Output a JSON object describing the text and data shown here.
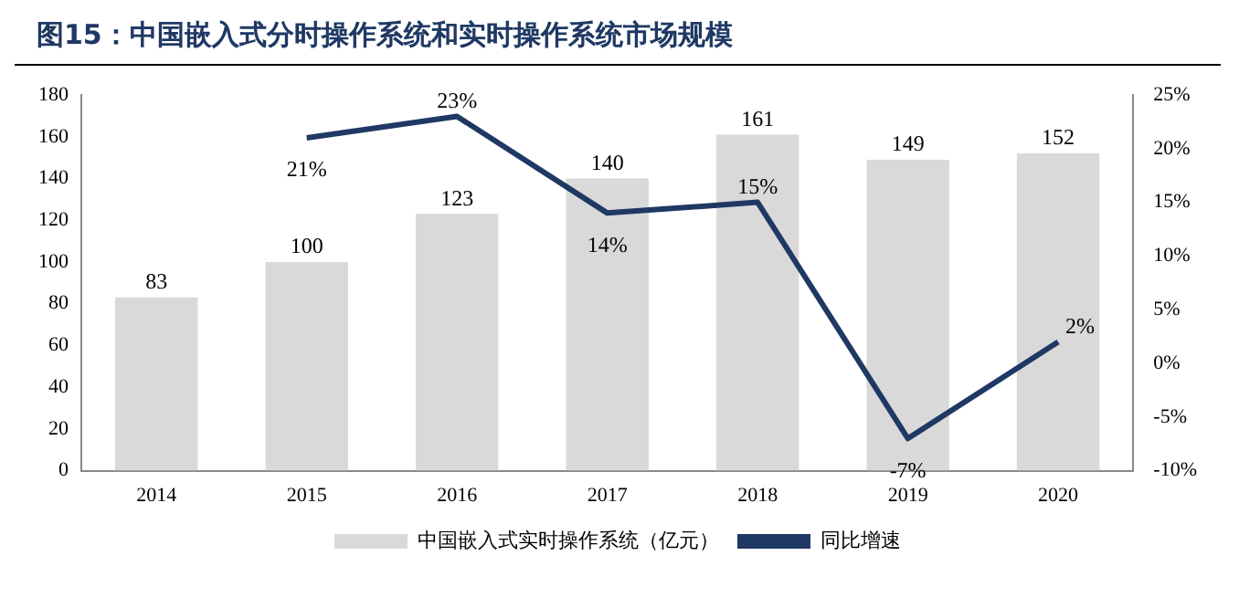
{
  "chart_data": {
    "type": "bar",
    "title": "图15：中国嵌入式分时操作系统和实时操作系统市场规模",
    "categories": [
      "2014",
      "2015",
      "2016",
      "2017",
      "2018",
      "2019",
      "2020"
    ],
    "series": [
      {
        "name": "中国嵌入式实时操作系统（亿元）",
        "color": "#d9d9d9",
        "values": [
          83,
          100,
          123,
          140,
          161,
          149,
          152
        ],
        "value_labels": [
          "83",
          "100",
          "123",
          "140",
          "161",
          "149",
          "152"
        ]
      },
      {
        "name": "同比增速",
        "type": "line",
        "axis": "y2",
        "color": "#1f3864",
        "values": [
          null,
          21,
          23,
          14,
          15,
          -7,
          2
        ],
        "value_labels": [
          null,
          "21%",
          "23%",
          "14%",
          "15%",
          "-7%",
          "2%"
        ]
      }
    ],
    "ylim": [
      0,
      180
    ],
    "yticks": [
      0,
      20,
      40,
      60,
      80,
      100,
      120,
      140,
      160,
      180
    ],
    "y2lim": [
      -10,
      25
    ],
    "y2ticks": [
      {
        "value": -10,
        "label": "-10%"
      },
      {
        "value": -5,
        "label": "-5%"
      },
      {
        "value": 0,
        "label": "0%"
      },
      {
        "value": 5,
        "label": "5%"
      },
      {
        "value": 10,
        "label": "10%"
      },
      {
        "value": 15,
        "label": "15%"
      },
      {
        "value": 20,
        "label": "20%"
      },
      {
        "value": 25,
        "label": "25%"
      }
    ],
    "grid": false,
    "legend": "bottom",
    "marker": "none"
  }
}
